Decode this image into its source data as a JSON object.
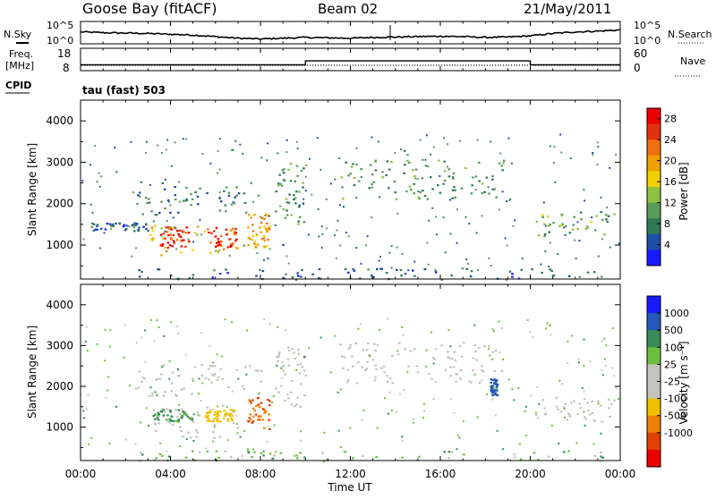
{
  "header": {
    "station": "Goose Bay (fitACF)",
    "beam": "Beam 02",
    "date": "21/May/2011"
  },
  "labels": {
    "nsky": "N.Sky",
    "nsearch": "N.Search",
    "freq_line1": "Freq.",
    "freq_line2": "[MHz]",
    "nave": "Nave",
    "cpid": "CPID",
    "cpid_value": "tau (fast) 503",
    "slant_range": "Slant Range [km]",
    "time_axis": "Time UT",
    "power_title": "Power [dB]",
    "velocity_title": "Velocity [m s⁻¹]",
    "noise_ticks_left": [
      "10^5",
      "10^0"
    ],
    "noise_ticks_right": [
      "10^5",
      "10^0"
    ],
    "freq_ticks_left": [
      "18",
      "8"
    ],
    "freq_ticks_right": [
      "60",
      "0"
    ]
  },
  "colors": {
    "power_scale": [
      "#1a1aff",
      "#1e4fa6",
      "#2f7a55",
      "#5a9a5a",
      "#90c040",
      "#f0d000",
      "#f0a000",
      "#ee7010",
      "#e33010",
      "#ee0000"
    ],
    "velocity_scale": [
      "#1a1aff",
      "#2558b8",
      "#3a8a5a",
      "#6cc040",
      "#c4c4bc",
      "#c4c4bc",
      "#f0c000",
      "#ee8000",
      "#e04000",
      "#ee0000"
    ],
    "background": "#ffffff"
  },
  "chart_data": [
    {
      "type": "line",
      "title": "N.Sky / N.Search",
      "x": [
        0,
        1,
        2,
        3,
        4,
        5,
        6,
        7,
        8,
        9,
        10,
        11,
        12,
        13,
        14,
        15,
        16,
        17,
        18,
        19,
        20,
        21,
        22,
        23,
        24
      ],
      "series": [
        {
          "name": "N.Sky",
          "values": [
            2.8,
            2.6,
            2.5,
            2.4,
            2.2,
            2.0,
            1.6,
            1.2,
            1.0,
            1.2,
            1.4,
            1.3,
            1.2,
            1.4,
            1.5,
            1.6,
            1.7,
            1.6,
            1.4,
            1.5,
            1.8,
            2.4,
            2.8,
            3.0,
            3.3
          ]
        }
      ],
      "ylim": [
        0,
        5
      ],
      "yscale": "log",
      "xlim": [
        0,
        24
      ]
    },
    {
      "type": "line",
      "title": "Freq / Nave",
      "x": [
        0,
        10,
        10,
        20,
        20,
        24
      ],
      "series": [
        {
          "name": "Freq. [MHz]",
          "values": [
            10.5,
            10.5,
            12.5,
            12.5,
            10.5,
            10.5
          ]
        },
        {
          "name": "Nave",
          "values": [
            10,
            10,
            10,
            10,
            10,
            10
          ]
        }
      ],
      "ylim": [
        8,
        18
      ],
      "xlim": [
        0,
        24
      ]
    },
    {
      "type": "heatmap",
      "title": "Power [dB]",
      "xlabel": "Time UT",
      "ylabel": "Slant Range [km]",
      "x_ticks": [
        "00:00",
        "04:00",
        "08:00",
        "12:00",
        "16:00",
        "20:00",
        "00:00"
      ],
      "y_ticks": [
        1000,
        2000,
        3000,
        4000
      ],
      "xlim": [
        0,
        24
      ],
      "ylim": [
        180,
        4500
      ],
      "colorbar_ticks": [
        4,
        8,
        12,
        16,
        20,
        24,
        28
      ],
      "colorbar_range": [
        0,
        30
      ],
      "regions": [
        {
          "t0": 2.4,
          "t1": 8.0,
          "r0": 1750,
          "r1": 2550,
          "value": 8
        },
        {
          "t0": 8.6,
          "t1": 10.0,
          "r0": 1500,
          "r1": 3000,
          "value": 10
        },
        {
          "t0": 11.5,
          "t1": 19.0,
          "r0": 2100,
          "r1": 3100,
          "value": 10
        },
        {
          "t0": 3.0,
          "t1": 7.0,
          "r0": 750,
          "r1": 1550,
          "value": 18
        },
        {
          "t0": 3.5,
          "t1": 4.8,
          "r0": 950,
          "r1": 1450,
          "value": 26
        },
        {
          "t0": 5.6,
          "t1": 6.9,
          "r0": 950,
          "r1": 1450,
          "value": 27
        },
        {
          "t0": 7.4,
          "t1": 8.4,
          "r0": 950,
          "r1": 1800,
          "value": 20
        },
        {
          "t0": 20.2,
          "t1": 23.7,
          "r0": 1150,
          "r1": 1850,
          "value": 12
        },
        {
          "t0": 0.3,
          "t1": 3.0,
          "r0": 1350,
          "r1": 1550,
          "value": 6
        },
        {
          "t0": 2.5,
          "t1": 23.5,
          "r0": 180,
          "r1": 450,
          "value": 6
        }
      ]
    },
    {
      "type": "heatmap",
      "title": "Velocity [m s⁻¹]",
      "xlabel": "Time UT",
      "ylabel": "Slant Range [km]",
      "x_ticks": [
        "00:00",
        "04:00",
        "08:00",
        "12:00",
        "16:00",
        "20:00",
        "00:00"
      ],
      "y_ticks": [
        1000,
        2000,
        3000,
        4000
      ],
      "xlim": [
        0,
        24
      ],
      "ylim": [
        180,
        4500
      ],
      "colorbar_ticks": [
        "1000",
        "500",
        "100",
        "25",
        "-25",
        "-100",
        "-500",
        "-1000"
      ],
      "regions": [
        {
          "t0": 2.4,
          "t1": 8.0,
          "r0": 1750,
          "r1": 2550,
          "value": 0
        },
        {
          "t0": 8.6,
          "t1": 10.0,
          "r0": 1500,
          "r1": 3000,
          "value": 0
        },
        {
          "t0": 11.5,
          "t1": 19.0,
          "r0": 2100,
          "r1": 3100,
          "value": 0
        },
        {
          "t0": 3.0,
          "t1": 7.0,
          "r0": 750,
          "r1": 1550,
          "value": 0
        },
        {
          "t0": 3.2,
          "t1": 5.0,
          "r0": 1150,
          "r1": 1450,
          "value": 350
        },
        {
          "t0": 5.5,
          "t1": 6.8,
          "r0": 1150,
          "r1": 1450,
          "value": -80
        },
        {
          "t0": 7.4,
          "t1": 8.4,
          "r0": 950,
          "r1": 1800,
          "value": -250
        },
        {
          "t0": 20.2,
          "t1": 23.7,
          "r0": 1150,
          "r1": 1750,
          "value": 0
        },
        {
          "t0": 18.2,
          "t1": 18.5,
          "r0": 1800,
          "r1": 2200,
          "value": 800
        },
        {
          "t0": 2.5,
          "t1": 23.5,
          "r0": 180,
          "r1": 450,
          "value": 150
        }
      ]
    }
  ]
}
